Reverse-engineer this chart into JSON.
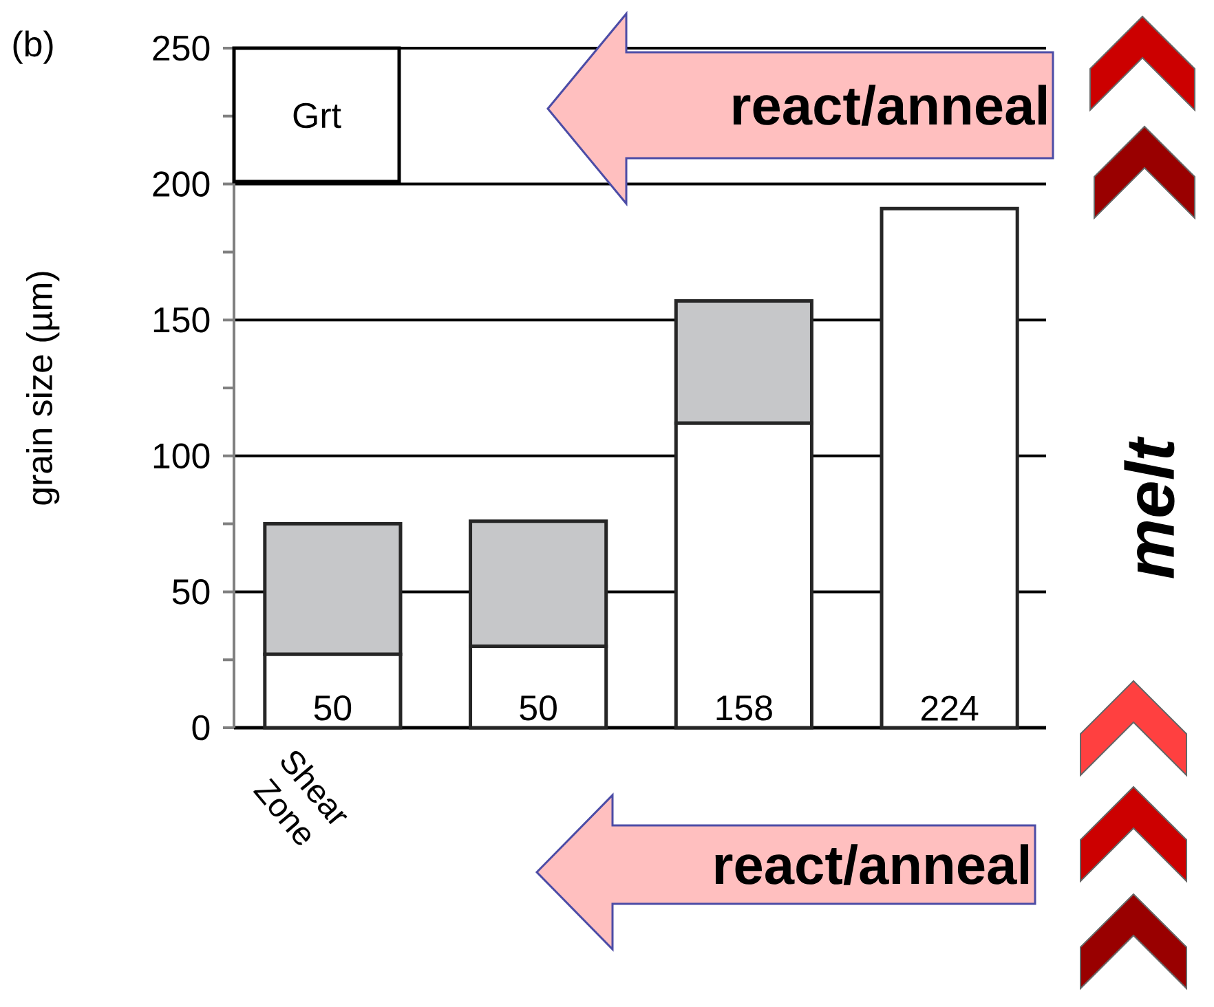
{
  "chart_data": {
    "type": "bar",
    "stacked": true,
    "ylabel": "grain size (µm)",
    "categories": [
      "Shear Zone",
      null,
      null,
      null
    ],
    "series": [
      {
        "color": "#ffffff",
        "values": [
          27,
          30,
          112,
          191
        ]
      },
      {
        "color": "#c6c7c9",
        "values": [
          48,
          46,
          45,
          null
        ]
      }
    ],
    "ylim": [
      0,
      250
    ],
    "yticks": [
      0,
      50,
      100,
      150,
      200,
      250
    ],
    "grid": "y",
    "annotations": [
      "(b)",
      "Grt",
      "react/anneal",
      "react/anneal",
      "melt",
      "50",
      "50",
      "158",
      "224"
    ]
  }
}
